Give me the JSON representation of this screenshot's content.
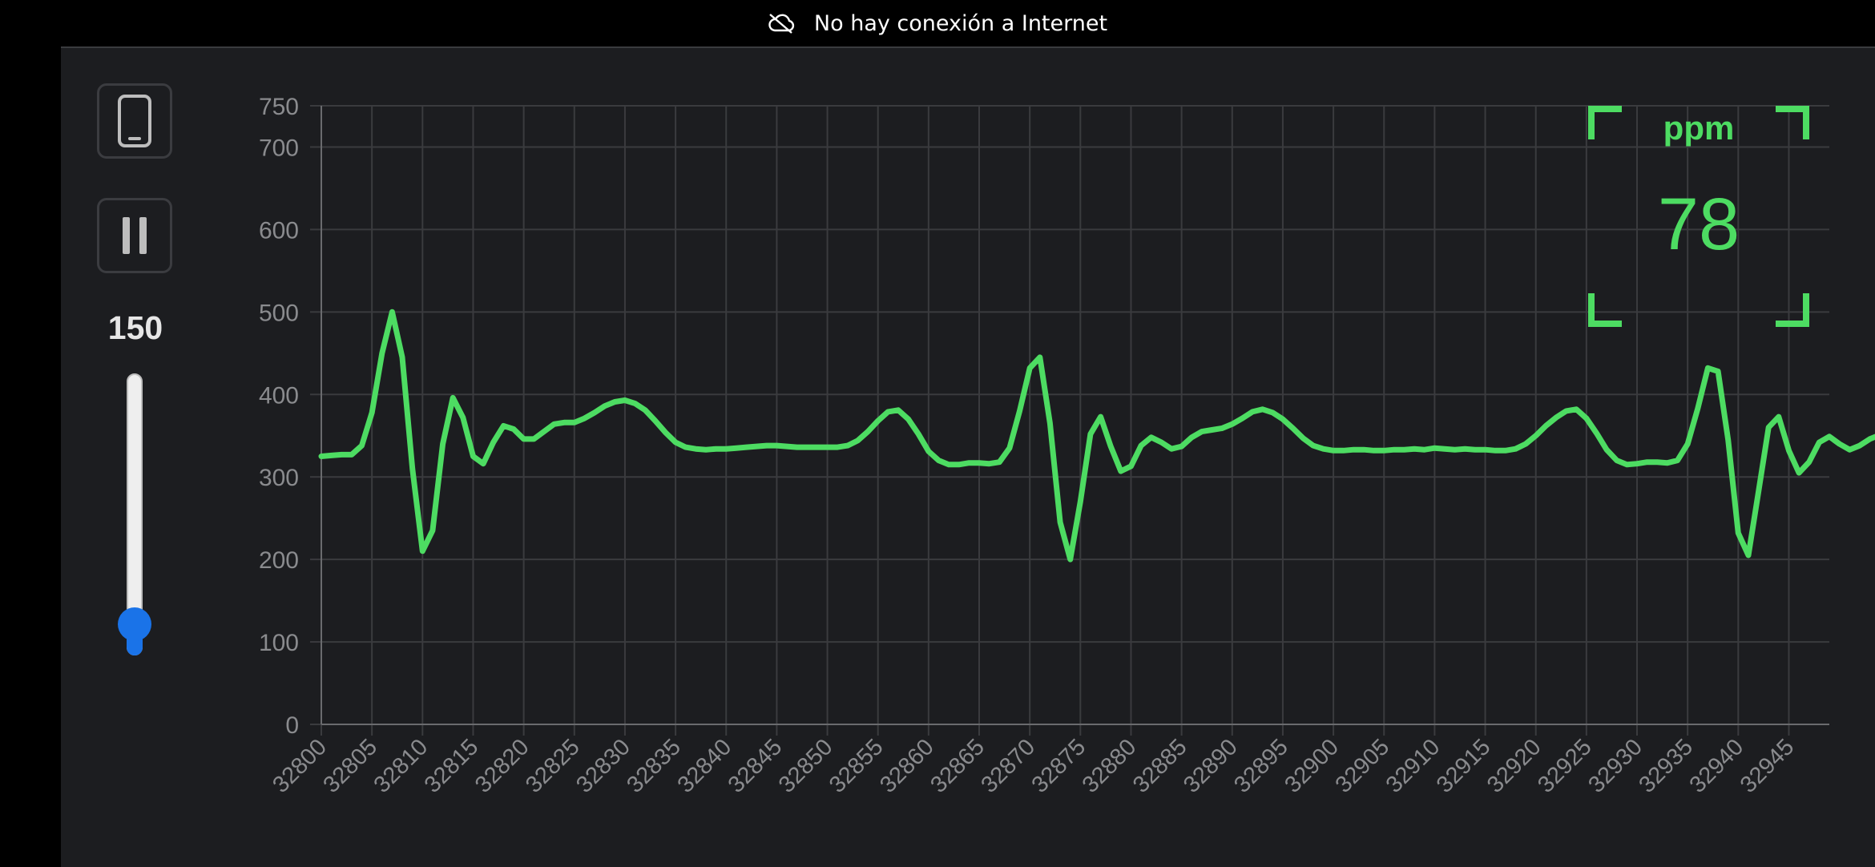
{
  "status_bar": {
    "icon": "cloud-off-icon",
    "message": "No hay conexión a Internet"
  },
  "sidebar": {
    "device_button_icon": "smartphone-icon",
    "pause_button_icon": "pause-icon",
    "slider": {
      "value": "150",
      "min": 100,
      "max": 1000,
      "current": 150
    }
  },
  "readout": {
    "label": "ppm",
    "value": "78"
  },
  "colors": {
    "line": "#4ddc62",
    "accent": "#1a73e8",
    "grid": "#3a3b3e",
    "axis_text": "#8a8b8e"
  },
  "chart_data": {
    "type": "line",
    "title": "",
    "xlabel": "",
    "ylabel": "",
    "xlim": [
      32800,
      32949
    ],
    "ylim": [
      0,
      750
    ],
    "y_ticks": [
      0,
      100,
      200,
      300,
      400,
      500,
      600,
      700,
      750
    ],
    "x_ticks": [
      32800,
      32805,
      32810,
      32815,
      32820,
      32825,
      32830,
      32835,
      32840,
      32845,
      32850,
      32855,
      32860,
      32865,
      32870,
      32875,
      32880,
      32885,
      32890,
      32895,
      32900,
      32905,
      32910,
      32915,
      32920,
      32925,
      32930,
      32935,
      32940,
      32945
    ],
    "x_tick_labels": [
      "32800",
      "32805",
      "32810",
      "32815",
      "32820",
      "32825",
      "32830",
      "32835",
      "32840",
      "32845",
      "32850",
      "32855",
      "32860",
      "32865",
      "32870",
      "32875",
      "32880",
      "32885",
      "32890",
      "32895",
      "32900",
      "32905",
      "32910",
      "32915",
      "32920",
      "32925",
      "32930",
      "32935",
      "32940",
      "32945"
    ],
    "grid": true,
    "legend": "none",
    "x_start": 32800,
    "values": [
      325,
      326,
      327,
      327,
      338,
      378,
      450,
      500,
      445,
      310,
      210,
      235,
      340,
      396,
      372,
      325,
      316,
      342,
      362,
      358,
      346,
      346,
      355,
      364,
      366,
      366,
      371,
      378,
      386,
      391,
      393,
      389,
      381,
      368,
      354,
      342,
      336,
      334,
      333,
      334,
      334,
      335,
      336,
      337,
      338,
      338,
      337,
      336,
      336,
      336,
      336,
      336,
      338,
      344,
      355,
      368,
      379,
      381,
      370,
      352,
      331,
      320,
      315,
      315,
      317,
      317,
      316,
      318,
      335,
      380,
      432,
      445,
      365,
      245,
      200,
      270,
      352,
      373,
      337,
      307,
      313,
      338,
      348,
      342,
      334,
      337,
      348,
      355,
      357,
      359,
      364,
      371,
      379,
      382,
      378,
      370,
      359,
      347,
      338,
      334,
      332,
      332,
      333,
      333,
      332,
      332,
      333,
      333,
      334,
      333,
      335,
      334,
      333,
      334,
      333,
      333,
      332,
      332,
      334,
      340,
      350,
      362,
      372,
      380,
      382,
      371,
      353,
      333,
      320,
      315,
      316,
      318,
      318,
      317,
      320,
      340,
      383,
      432,
      428,
      345,
      232,
      205,
      282,
      360,
      373,
      332,
      305,
      318,
      342,
      349,
      340,
      333,
      338,
      346,
      351
    ]
  }
}
